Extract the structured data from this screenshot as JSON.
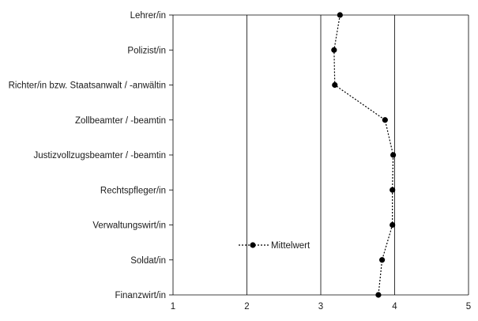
{
  "chart_data": {
    "type": "line",
    "orientation": "horizontal",
    "categories": [
      "Lehrer/in",
      "Polizist/in",
      "Richter/in bzw. Staatsanwalt / -anwältin",
      "Zollbeamter / -beamtin",
      "Justizvollzugsbeamter / -beamtin",
      "Rechtspfleger/in",
      "Verwaltungswirt/in",
      "Soldat/in",
      "Finanzwirt/in"
    ],
    "series": [
      {
        "name": "Mittelwert",
        "values": [
          3.26,
          3.18,
          3.19,
          3.87,
          3.98,
          3.97,
          3.97,
          3.83,
          3.78
        ],
        "line_style": "dotted",
        "marker": "circle",
        "color": "#000000"
      }
    ],
    "xlim": [
      1,
      5
    ],
    "xticks": [
      "1",
      "2",
      "3",
      "4",
      "5"
    ],
    "grid": "vertical",
    "legend_position": "lower-left-inside"
  }
}
